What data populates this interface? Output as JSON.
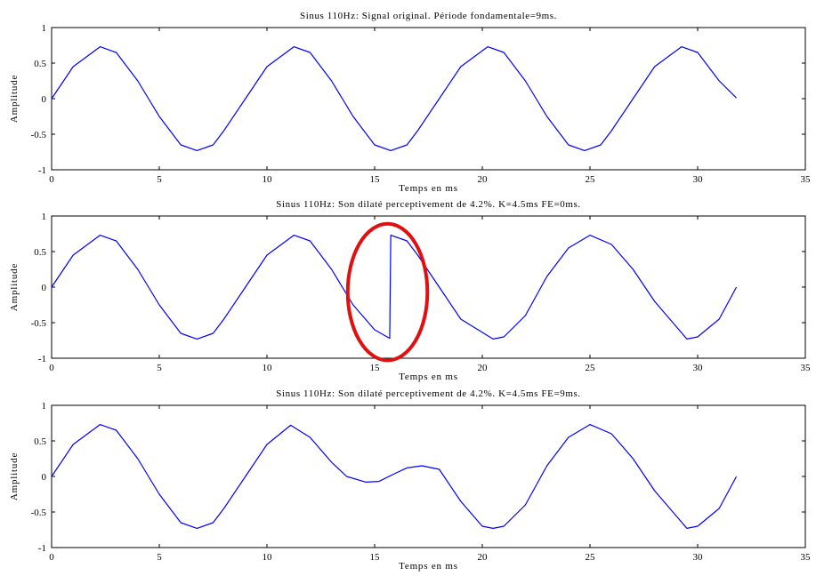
{
  "chart_data": [
    {
      "type": "line",
      "title": "Sinus 110Hz: Signal original. Période fondamentale=9ms.",
      "xlabel": "Temps en ms",
      "ylabel": "Amplitude",
      "xlim": [
        0,
        35
      ],
      "ylim": [
        -1,
        1
      ],
      "xticks": [
        0,
        5,
        10,
        15,
        20,
        25,
        30,
        35
      ],
      "yticks": [
        1,
        0.5,
        0,
        -0.5,
        -1
      ],
      "grid": false,
      "series": [
        {
          "color": "#0000ff",
          "x": [
            0,
            1,
            2.25,
            3,
            4,
            4.5,
            5,
            6,
            6.75,
            7.5,
            8,
            9,
            10,
            11.25,
            12,
            13,
            13.5,
            14,
            15,
            15.75,
            16.5,
            17,
            18,
            19,
            20.25,
            21,
            22,
            22.5,
            23,
            24,
            24.75,
            25.5,
            26,
            27,
            28,
            29.25,
            30,
            31,
            31.8
          ],
          "y": [
            0,
            0.45,
            0.73,
            0.65,
            0.25,
            0,
            -0.25,
            -0.65,
            -0.73,
            -0.65,
            -0.45,
            0,
            0.45,
            0.73,
            0.65,
            0.25,
            0,
            -0.25,
            -0.65,
            -0.73,
            -0.65,
            -0.45,
            0,
            0.45,
            0.73,
            0.65,
            0.25,
            0,
            -0.25,
            -0.65,
            -0.73,
            -0.65,
            -0.45,
            0,
            0.45,
            0.73,
            0.65,
            0.25,
            0.01
          ]
        }
      ]
    },
    {
      "type": "line",
      "title": "Sinus 110Hz: Son dilaté perceptivement de 4.2%. K=4.5ms FE=0ms.",
      "xlabel": "Temps en ms",
      "ylabel": "Amplitude",
      "xlim": [
        0,
        35
      ],
      "ylim": [
        -1,
        1
      ],
      "xticks": [
        0,
        5,
        10,
        15,
        20,
        25,
        30,
        35
      ],
      "yticks": [
        1,
        0.5,
        0,
        -0.5,
        -1
      ],
      "grid": false,
      "annotation": {
        "shape": "ellipse",
        "color": "#e01010",
        "center": [
          15.6,
          -0.07
        ],
        "radii": [
          1.85,
          0.96
        ]
      },
      "series": [
        {
          "color": "#0000ff",
          "x": [
            0,
            1,
            2.25,
            3,
            4,
            4.5,
            5,
            6,
            6.75,
            7.5,
            8,
            9,
            10,
            11.25,
            12,
            13,
            13.5,
            14,
            15,
            15.7,
            15.75,
            16.5,
            17,
            18,
            19,
            20.5,
            21,
            22,
            23,
            24,
            25,
            26,
            27,
            28,
            29.5,
            30,
            31,
            31.8
          ],
          "y": [
            0,
            0.45,
            0.73,
            0.65,
            0.25,
            0,
            -0.25,
            -0.65,
            -0.73,
            -0.65,
            -0.45,
            0,
            0.45,
            0.73,
            0.65,
            0.25,
            0,
            -0.25,
            -0.6,
            -0.72,
            0.73,
            0.65,
            0.45,
            0,
            -0.45,
            -0.73,
            -0.7,
            -0.4,
            0.15,
            0.55,
            0.73,
            0.6,
            0.25,
            -0.2,
            -0.73,
            -0.7,
            -0.45,
            0
          ]
        }
      ]
    },
    {
      "type": "line",
      "title": "Sinus 110Hz: Son dilaté perceptivement de 4.2%. K=4.5ms FE=9ms.",
      "xlabel": "Temps en ms",
      "ylabel": "Amplitude",
      "xlim": [
        0,
        35
      ],
      "ylim": [
        -1,
        1
      ],
      "xticks": [
        0,
        5,
        10,
        15,
        20,
        25,
        30,
        35
      ],
      "yticks": [
        1,
        0.5,
        0,
        -0.5,
        -1
      ],
      "grid": false,
      "series": [
        {
          "color": "#0000ff",
          "x": [
            0,
            1,
            2.25,
            3,
            4,
            4.5,
            5,
            6,
            6.75,
            7.5,
            8,
            9,
            10,
            11.1,
            12,
            13,
            13.7,
            14.6,
            15.2,
            16,
            16.5,
            17.2,
            18,
            19,
            20,
            20.5,
            21,
            22,
            23,
            24,
            25,
            26,
            27,
            28,
            29.5,
            30,
            31,
            31.8
          ],
          "y": [
            0,
            0.45,
            0.73,
            0.65,
            0.25,
            0,
            -0.25,
            -0.65,
            -0.73,
            -0.65,
            -0.45,
            0,
            0.45,
            0.72,
            0.55,
            0.2,
            0,
            -0.08,
            -0.07,
            0.05,
            0.12,
            0.15,
            0.1,
            -0.35,
            -0.7,
            -0.73,
            -0.7,
            -0.4,
            0.15,
            0.55,
            0.73,
            0.6,
            0.25,
            -0.2,
            -0.73,
            -0.7,
            -0.45,
            0
          ]
        }
      ]
    }
  ]
}
